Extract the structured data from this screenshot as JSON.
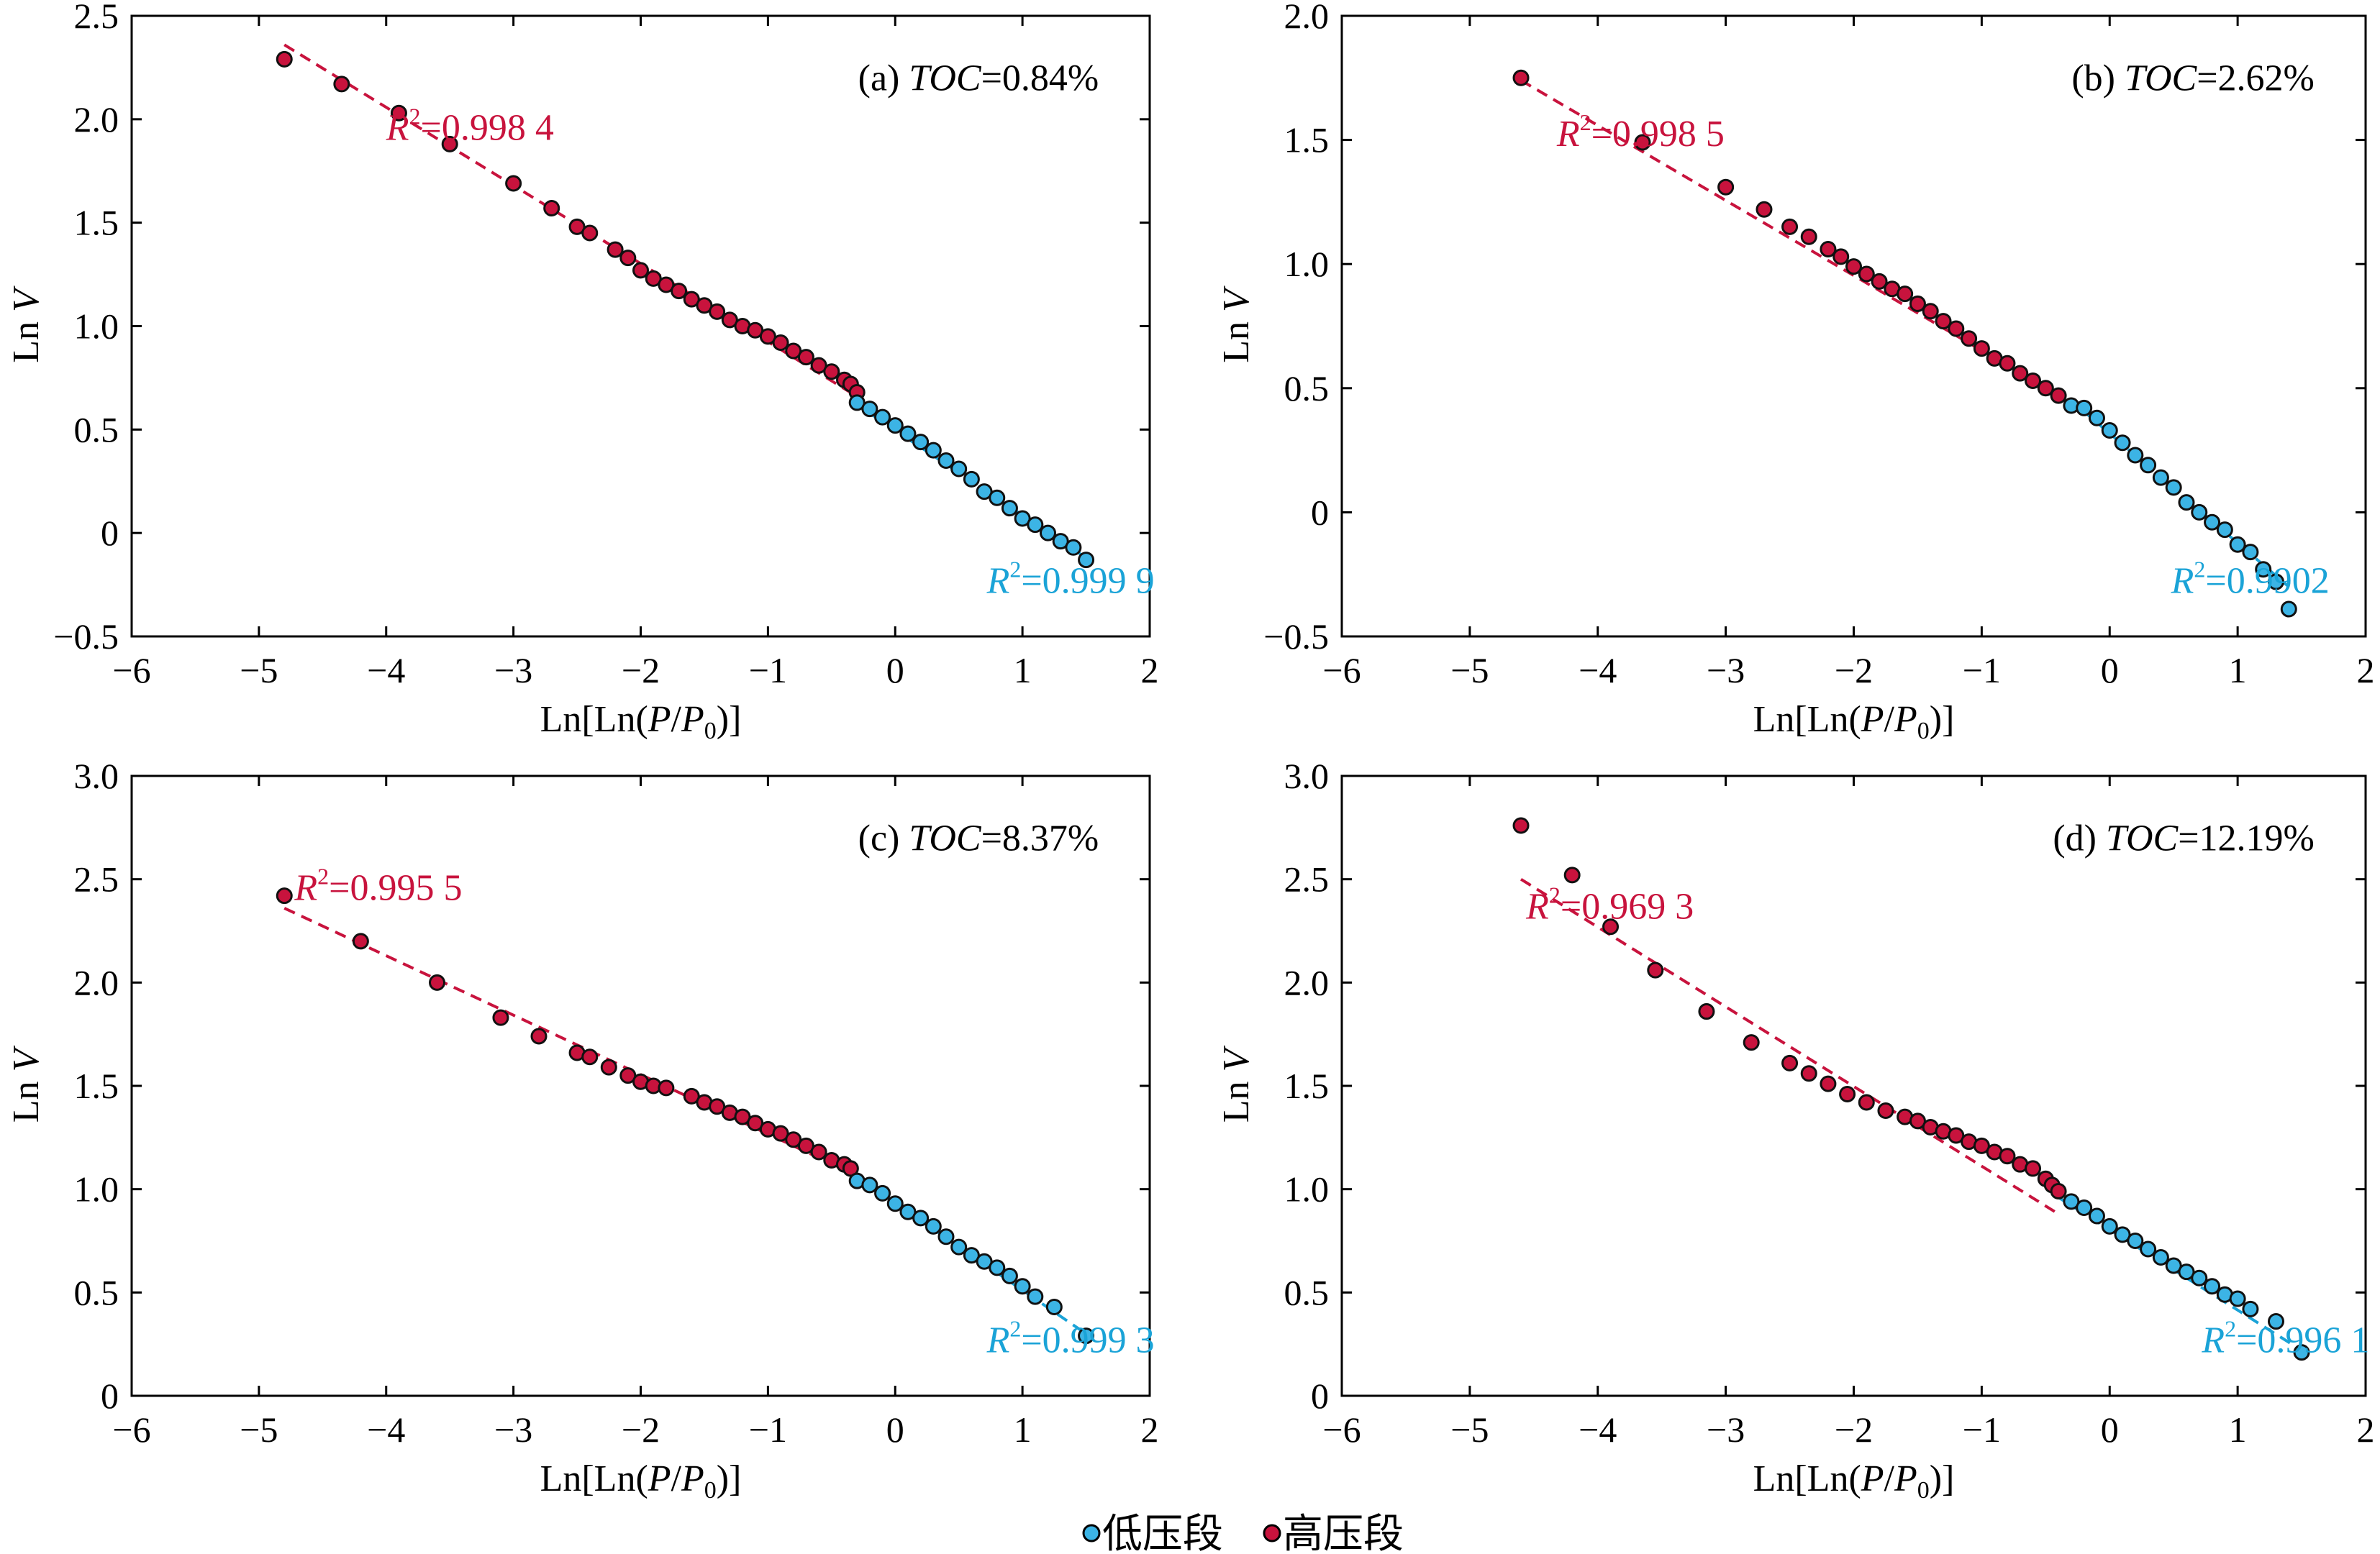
{
  "colors": {
    "low": "#3cb4e5",
    "high": "#c8133d",
    "low_line": "#1aa3d7",
    "high_line": "#c8133d"
  },
  "legend": [
    {
      "label": "低压段",
      "color_key": "low"
    },
    {
      "label": "高压段",
      "color_key": "high"
    }
  ],
  "chart_data": [
    {
      "type": "scatter",
      "panel_tag": "(a)",
      "toc_var": "TOC",
      "toc_value": "=0.84%",
      "xlabel": "Ln[Ln(P/P0)]",
      "ylabel": "Ln V",
      "xlim": [
        -6,
        2
      ],
      "ylim": [
        -0.5,
        2.5
      ],
      "xticks": [
        -6,
        -5,
        -4,
        -3,
        -2,
        -1,
        0,
        1,
        2
      ],
      "yticks": [
        -0.5,
        0,
        0.5,
        1.0,
        1.5,
        2.0,
        2.5
      ],
      "r2_high": "=0.998 4",
      "r2_low": "=0.999 9",
      "high_points": [
        [
          -4.8,
          2.29
        ],
        [
          -4.35,
          2.17
        ],
        [
          -3.9,
          2.03
        ],
        [
          -3.5,
          1.88
        ],
        [
          -3.0,
          1.69
        ],
        [
          -2.7,
          1.57
        ],
        [
          -2.5,
          1.48
        ],
        [
          -2.4,
          1.45
        ],
        [
          -2.2,
          1.37
        ],
        [
          -2.1,
          1.33
        ],
        [
          -2.0,
          1.27
        ],
        [
          -1.9,
          1.23
        ],
        [
          -1.8,
          1.2
        ],
        [
          -1.7,
          1.17
        ],
        [
          -1.6,
          1.13
        ],
        [
          -1.5,
          1.1
        ],
        [
          -1.4,
          1.07
        ],
        [
          -1.3,
          1.03
        ],
        [
          -1.2,
          1.0
        ],
        [
          -1.1,
          0.98
        ],
        [
          -1.0,
          0.95
        ],
        [
          -0.9,
          0.92
        ],
        [
          -0.8,
          0.88
        ],
        [
          -0.7,
          0.85
        ],
        [
          -0.6,
          0.81
        ],
        [
          -0.5,
          0.78
        ],
        [
          -0.4,
          0.74
        ],
        [
          -0.35,
          0.72
        ],
        [
          -0.3,
          0.68
        ]
      ],
      "low_points": [
        [
          -0.3,
          0.63
        ],
        [
          -0.2,
          0.6
        ],
        [
          -0.1,
          0.56
        ],
        [
          0.0,
          0.52
        ],
        [
          0.1,
          0.48
        ],
        [
          0.2,
          0.44
        ],
        [
          0.3,
          0.4
        ],
        [
          0.4,
          0.35
        ],
        [
          0.5,
          0.31
        ],
        [
          0.6,
          0.26
        ],
        [
          0.7,
          0.2
        ],
        [
          0.8,
          0.17
        ],
        [
          0.9,
          0.12
        ],
        [
          1.0,
          0.07
        ],
        [
          1.1,
          0.04
        ],
        [
          1.2,
          0.0
        ],
        [
          1.3,
          -0.04
        ],
        [
          1.4,
          -0.07
        ],
        [
          1.5,
          -0.13
        ]
      ],
      "high_fit": [
        [
          -4.8,
          2.36
        ],
        [
          -0.3,
          0.66
        ]
      ],
      "low_fit": [
        [
          -0.3,
          0.62
        ],
        [
          1.5,
          -0.12
        ]
      ]
    },
    {
      "type": "scatter",
      "panel_tag": "(b)",
      "toc_var": "TOC",
      "toc_value": "=2.62%",
      "xlabel": "Ln[Ln(P/P0)]",
      "ylabel": "Ln V",
      "xlim": [
        -6,
        2
      ],
      "ylim": [
        -0.5,
        2.0
      ],
      "xticks": [
        -6,
        -5,
        -4,
        -3,
        -2,
        -1,
        0,
        1,
        2
      ],
      "yticks": [
        -0.5,
        0,
        0.5,
        1.0,
        1.5,
        2.0
      ],
      "r2_high": "=0.998 5",
      "r2_low": "=0.9902",
      "high_points": [
        [
          -4.6,
          1.75
        ],
        [
          -3.65,
          1.49
        ],
        [
          -3.0,
          1.31
        ],
        [
          -2.7,
          1.22
        ],
        [
          -2.5,
          1.15
        ],
        [
          -2.35,
          1.11
        ],
        [
          -2.2,
          1.06
        ],
        [
          -2.1,
          1.03
        ],
        [
          -2.0,
          0.99
        ],
        [
          -1.9,
          0.96
        ],
        [
          -1.8,
          0.93
        ],
        [
          -1.7,
          0.9
        ],
        [
          -1.6,
          0.88
        ],
        [
          -1.5,
          0.84
        ],
        [
          -1.4,
          0.81
        ],
        [
          -1.3,
          0.77
        ],
        [
          -1.2,
          0.74
        ],
        [
          -1.1,
          0.7
        ],
        [
          -1.0,
          0.66
        ],
        [
          -0.9,
          0.62
        ],
        [
          -0.8,
          0.6
        ],
        [
          -0.7,
          0.56
        ],
        [
          -0.6,
          0.53
        ],
        [
          -0.5,
          0.5
        ],
        [
          -0.4,
          0.47
        ]
      ],
      "low_points": [
        [
          -0.3,
          0.43
        ],
        [
          -0.2,
          0.42
        ],
        [
          -0.1,
          0.38
        ],
        [
          0.0,
          0.33
        ],
        [
          0.1,
          0.28
        ],
        [
          0.2,
          0.23
        ],
        [
          0.3,
          0.19
        ],
        [
          0.4,
          0.14
        ],
        [
          0.5,
          0.1
        ],
        [
          0.6,
          0.04
        ],
        [
          0.7,
          0.0
        ],
        [
          0.8,
          -0.04
        ],
        [
          0.9,
          -0.07
        ],
        [
          1.0,
          -0.13
        ],
        [
          1.1,
          -0.16
        ],
        [
          1.2,
          -0.23
        ],
        [
          1.3,
          -0.28
        ],
        [
          1.4,
          -0.39
        ]
      ],
      "high_fit": [
        [
          -4.6,
          1.74
        ],
        [
          -0.3,
          0.44
        ]
      ],
      "low_fit": [
        [
          -0.3,
          0.45
        ],
        [
          1.4,
          -0.3
        ]
      ]
    },
    {
      "type": "scatter",
      "panel_tag": "(c)",
      "toc_var": "TOC",
      "toc_value": "=8.37%",
      "xlabel": "Ln[Ln(P/P0)]",
      "ylabel": "Ln V",
      "xlim": [
        -6,
        2
      ],
      "ylim": [
        0,
        3.0
      ],
      "xticks": [
        -6,
        -5,
        -4,
        -3,
        -2,
        -1,
        0,
        1,
        2
      ],
      "yticks": [
        0,
        0.5,
        1.0,
        1.5,
        2.0,
        2.5,
        3.0
      ],
      "r2_high": "=0.995 5",
      "r2_low": "=0.999 3",
      "high_points": [
        [
          -4.8,
          2.42
        ],
        [
          -4.2,
          2.2
        ],
        [
          -3.6,
          2.0
        ],
        [
          -3.1,
          1.83
        ],
        [
          -2.8,
          1.74
        ],
        [
          -2.5,
          1.66
        ],
        [
          -2.4,
          1.64
        ],
        [
          -2.25,
          1.59
        ],
        [
          -2.1,
          1.55
        ],
        [
          -2.0,
          1.52
        ],
        [
          -1.9,
          1.5
        ],
        [
          -1.8,
          1.49
        ],
        [
          -1.6,
          1.45
        ],
        [
          -1.5,
          1.42
        ],
        [
          -1.4,
          1.4
        ],
        [
          -1.3,
          1.37
        ],
        [
          -1.2,
          1.35
        ],
        [
          -1.1,
          1.32
        ],
        [
          -1.0,
          1.29
        ],
        [
          -0.9,
          1.27
        ],
        [
          -0.8,
          1.24
        ],
        [
          -0.7,
          1.21
        ],
        [
          -0.6,
          1.18
        ],
        [
          -0.5,
          1.14
        ],
        [
          -0.4,
          1.12
        ],
        [
          -0.35,
          1.1
        ]
      ],
      "low_points": [
        [
          -0.3,
          1.04
        ],
        [
          -0.2,
          1.02
        ],
        [
          -0.1,
          0.98
        ],
        [
          0.0,
          0.93
        ],
        [
          0.1,
          0.89
        ],
        [
          0.2,
          0.86
        ],
        [
          0.3,
          0.82
        ],
        [
          0.4,
          0.77
        ],
        [
          0.5,
          0.72
        ],
        [
          0.6,
          0.68
        ],
        [
          0.7,
          0.65
        ],
        [
          0.8,
          0.62
        ],
        [
          0.9,
          0.58
        ],
        [
          1.0,
          0.53
        ],
        [
          1.1,
          0.48
        ],
        [
          1.25,
          0.43
        ],
        [
          1.5,
          0.29
        ]
      ],
      "high_fit": [
        [
          -4.8,
          2.36
        ],
        [
          -0.35,
          1.08
        ]
      ],
      "low_fit": [
        [
          -0.3,
          1.06
        ],
        [
          1.5,
          0.3
        ]
      ]
    },
    {
      "type": "scatter",
      "panel_tag": "(d)",
      "toc_var": "TOC",
      "toc_value": "=12.19%",
      "xlabel": "Ln[Ln(P/P0)]",
      "ylabel": "Ln V",
      "xlim": [
        -6,
        2
      ],
      "ylim": [
        0,
        3.0
      ],
      "xticks": [
        -6,
        -5,
        -4,
        -3,
        -2,
        -1,
        0,
        1,
        2
      ],
      "yticks": [
        0,
        0.5,
        1.0,
        1.5,
        2.0,
        2.5,
        3.0
      ],
      "r2_high": "=0.969 3",
      "r2_low": "=0.996 1",
      "high_points": [
        [
          -4.6,
          2.76
        ],
        [
          -4.2,
          2.52
        ],
        [
          -3.9,
          2.27
        ],
        [
          -3.55,
          2.06
        ],
        [
          -3.15,
          1.86
        ],
        [
          -2.8,
          1.71
        ],
        [
          -2.5,
          1.61
        ],
        [
          -2.35,
          1.56
        ],
        [
          -2.2,
          1.51
        ],
        [
          -2.05,
          1.46
        ],
        [
          -1.9,
          1.42
        ],
        [
          -1.75,
          1.38
        ],
        [
          -1.6,
          1.35
        ],
        [
          -1.5,
          1.33
        ],
        [
          -1.4,
          1.3
        ],
        [
          -1.3,
          1.28
        ],
        [
          -1.2,
          1.26
        ],
        [
          -1.1,
          1.23
        ],
        [
          -1.0,
          1.21
        ],
        [
          -0.9,
          1.18
        ],
        [
          -0.8,
          1.16
        ],
        [
          -0.7,
          1.12
        ],
        [
          -0.6,
          1.1
        ],
        [
          -0.5,
          1.05
        ],
        [
          -0.45,
          1.02
        ],
        [
          -0.4,
          0.99
        ]
      ],
      "low_points": [
        [
          -0.3,
          0.94
        ],
        [
          -0.2,
          0.91
        ],
        [
          -0.1,
          0.87
        ],
        [
          0.0,
          0.82
        ],
        [
          0.1,
          0.78
        ],
        [
          0.2,
          0.75
        ],
        [
          0.3,
          0.71
        ],
        [
          0.4,
          0.67
        ],
        [
          0.5,
          0.63
        ],
        [
          0.6,
          0.6
        ],
        [
          0.7,
          0.57
        ],
        [
          0.8,
          0.53
        ],
        [
          0.9,
          0.49
        ],
        [
          1.0,
          0.47
        ],
        [
          1.1,
          0.42
        ],
        [
          1.3,
          0.36
        ],
        [
          1.5,
          0.21
        ]
      ],
      "high_fit": [
        [
          -4.6,
          2.5
        ],
        [
          -0.4,
          0.88
        ]
      ],
      "low_fit": [
        [
          -0.4,
          0.96
        ],
        [
          1.5,
          0.22
        ]
      ]
    }
  ]
}
